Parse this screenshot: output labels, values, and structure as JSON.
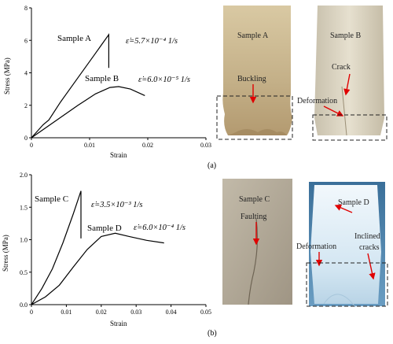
{
  "chart_data": [
    {
      "type": "line",
      "xlabel": "Strain",
      "ylabel": "Stress (MPa)",
      "xlim": [
        0,
        0.03
      ],
      "ylim": [
        0,
        8
      ],
      "xticks": [
        "0",
        "0.01",
        "0.02",
        "0.03"
      ],
      "yticks": [
        "0",
        "2",
        "4",
        "6",
        "8"
      ],
      "series": [
        {
          "name": "Sample A",
          "rate": "ε̇=5.7×10⁻⁴ 1/s",
          "points": [
            [
              0,
              0
            ],
            [
              0.002,
              0.8
            ],
            [
              0.003,
              1.1
            ],
            [
              0.005,
              2.2
            ],
            [
              0.008,
              3.7
            ],
            [
              0.011,
              5.2
            ],
            [
              0.0133,
              6.35
            ],
            [
              0.0133,
              4.3
            ]
          ]
        },
        {
          "name": "Sample B",
          "rate": "ε̇=6.0×10⁻⁵ 1/s",
          "points": [
            [
              0,
              0
            ],
            [
              0.004,
              1.0
            ],
            [
              0.008,
              2.0
            ],
            [
              0.011,
              2.7
            ],
            [
              0.0135,
              3.1
            ],
            [
              0.015,
              3.15
            ],
            [
              0.017,
              3.0
            ],
            [
              0.0195,
              2.6
            ]
          ]
        }
      ]
    },
    {
      "type": "line",
      "xlabel": "Strain",
      "ylabel": "Stress (MPa)",
      "xlim": [
        0,
        0.05
      ],
      "ylim": [
        0,
        2.0
      ],
      "xticks": [
        "0",
        "0.01",
        "0.02",
        "0.03",
        "0.04",
        "0.05"
      ],
      "yticks": [
        "0.0",
        "0.5",
        "1.0",
        "1.5",
        "2.0"
      ],
      "series": [
        {
          "name": "Sample C",
          "rate": "ε̇=3.5×10⁻³ 1/s",
          "points": [
            [
              0,
              0
            ],
            [
              0.003,
              0.25
            ],
            [
              0.006,
              0.55
            ],
            [
              0.009,
              0.95
            ],
            [
              0.012,
              1.4
            ],
            [
              0.0142,
              1.75
            ],
            [
              0.0142,
              1.02
            ]
          ]
        },
        {
          "name": "Sample D",
          "rate": "ε̇=6.0×10⁻⁴ 1/s",
          "points": [
            [
              0,
              0
            ],
            [
              0.004,
              0.12
            ],
            [
              0.008,
              0.3
            ],
            [
              0.012,
              0.58
            ],
            [
              0.016,
              0.85
            ],
            [
              0.02,
              1.05
            ],
            [
              0.024,
              1.1
            ],
            [
              0.028,
              1.05
            ],
            [
              0.033,
              0.99
            ],
            [
              0.038,
              0.95
            ]
          ]
        }
      ]
    }
  ],
  "photos": {
    "a_left": {
      "title": "Sample A",
      "label": "Buckling"
    },
    "a_right": {
      "title": "Sample B",
      "label": "Crack",
      "label2": "Deformation"
    },
    "b_left": {
      "title": "Sample C",
      "label": "Faulting"
    },
    "b_right": {
      "title": "Sample D",
      "label": "Deformation",
      "label2a": "Inclined",
      "label2b": "cracks"
    }
  },
  "captions": {
    "a": "(a)",
    "b": "(b)"
  },
  "colors": {
    "arrow": "#e00000",
    "ice_a": "#cbb993",
    "ice_b": "#ddd6c4",
    "ice_c": "#b4aa99",
    "ice_d": "#d5e7f3"
  }
}
